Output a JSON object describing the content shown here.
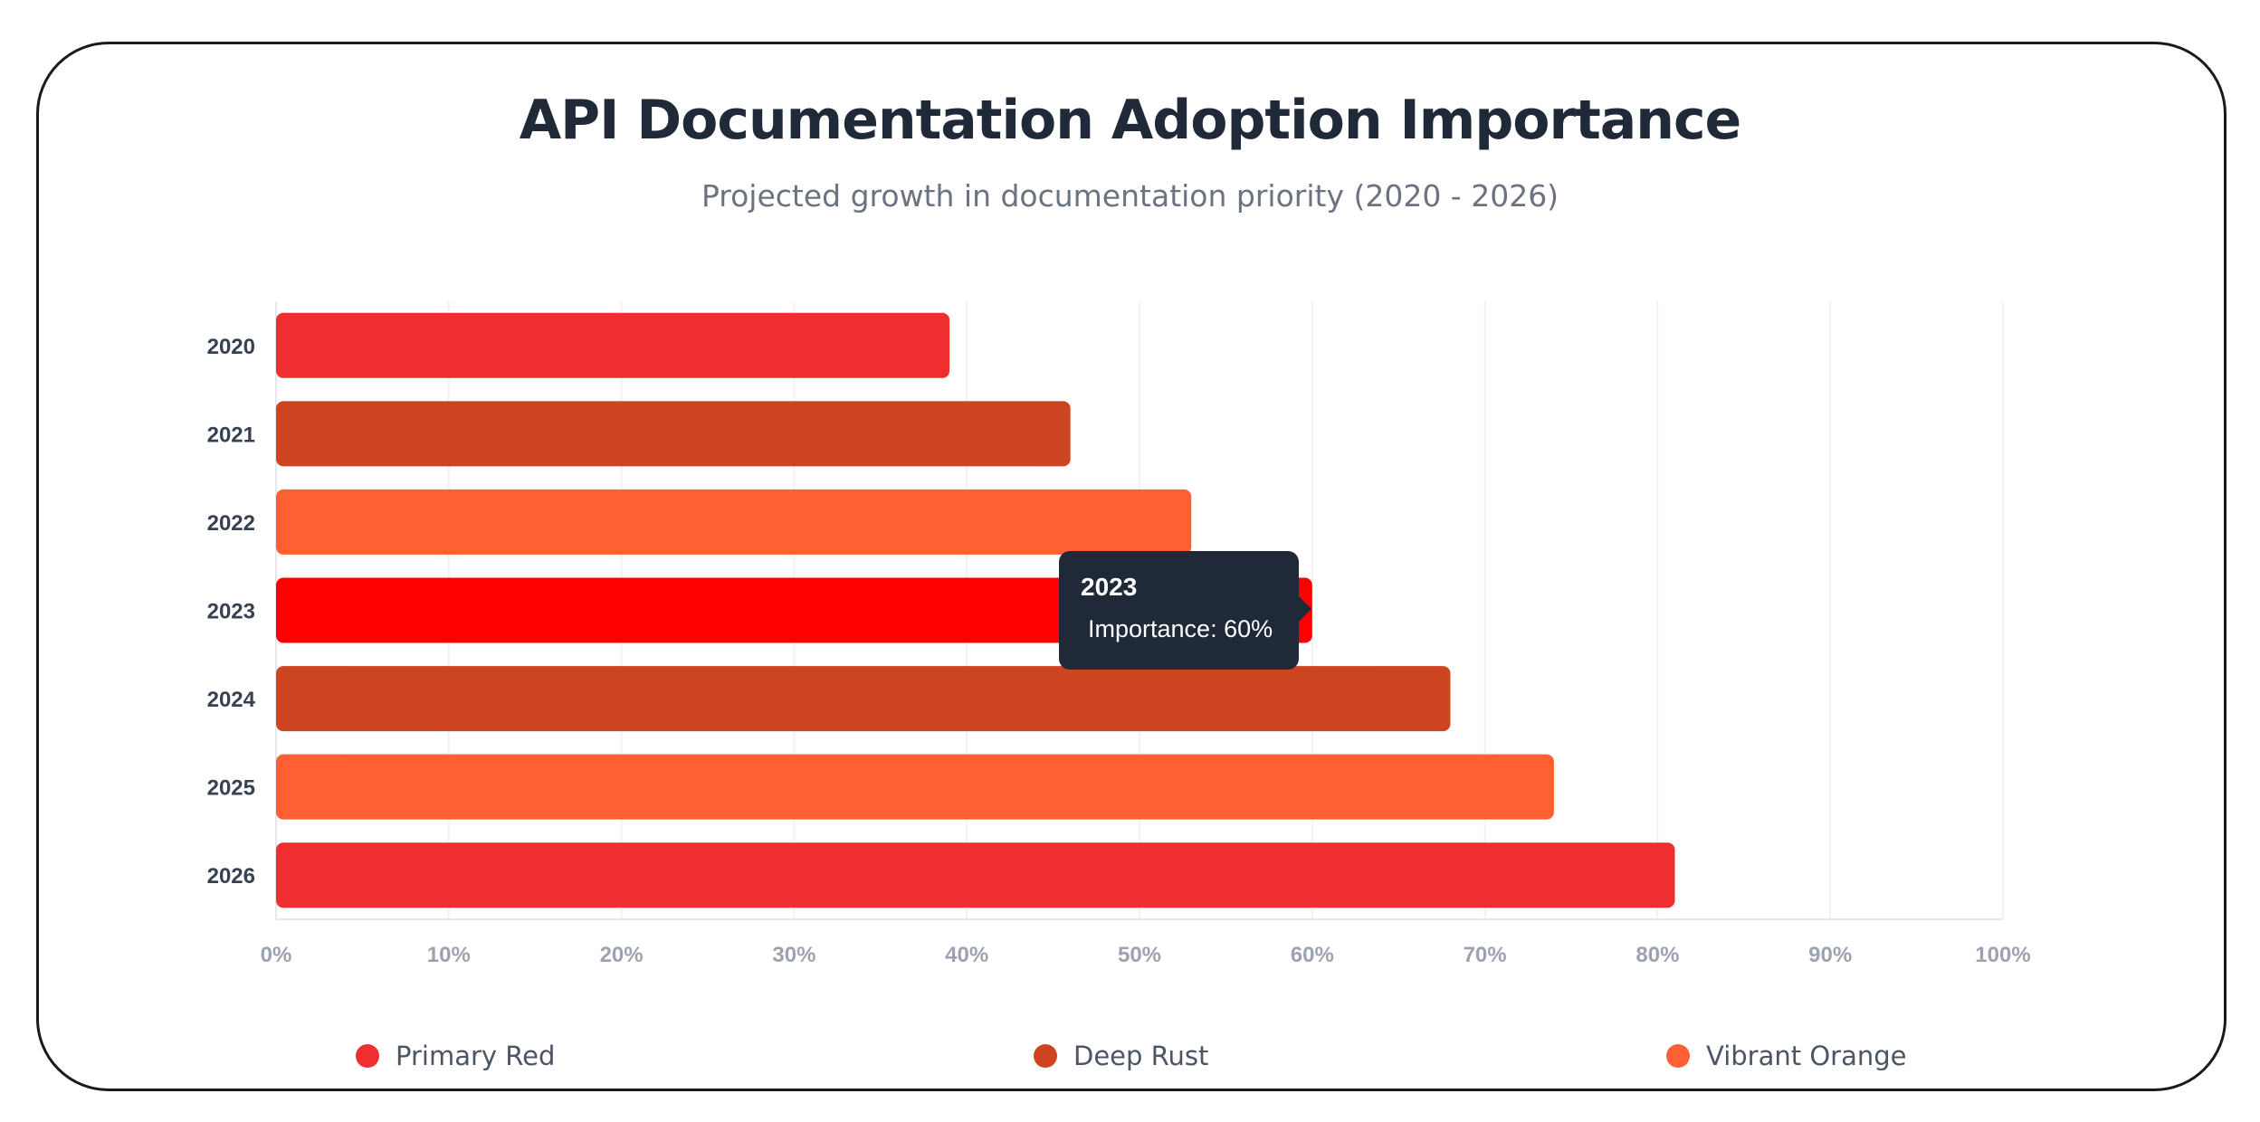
{
  "title": "API Documentation Adoption Importance",
  "subtitle": "Projected growth in documentation priority (2020 - 2026)",
  "colors": {
    "primary_red": "#ef2f2f",
    "deep_rust": "#cc4420",
    "vibrant_orange": "#ff6033",
    "highlight_red": "#ff0000",
    "tooltip_bg": "#1f2937",
    "grid": "#f1f2f4"
  },
  "chart_data": {
    "type": "bar",
    "orientation": "horizontal",
    "categories": [
      "2020",
      "2021",
      "2022",
      "2023",
      "2024",
      "2025",
      "2026"
    ],
    "values": [
      39,
      46,
      53,
      60,
      68,
      74,
      81
    ],
    "bar_colors": [
      "#ef2f2f",
      "#cc4420",
      "#ff6033",
      "#ff0000",
      "#cc4420",
      "#ff6033",
      "#ef2f2f"
    ],
    "xlim": [
      0,
      100
    ],
    "x_ticks": [
      "0%",
      "10%",
      "20%",
      "30%",
      "40%",
      "50%",
      "60%",
      "70%",
      "80%",
      "90%",
      "100%"
    ],
    "grid": true,
    "legend_position": "bottom",
    "legend": [
      {
        "label": "Primary Red",
        "color": "#ef2f2f"
      },
      {
        "label": "Deep Rust",
        "color": "#cc4420"
      },
      {
        "label": "Vibrant Orange",
        "color": "#ff6033"
      }
    ]
  },
  "tooltip": {
    "title": "2023",
    "body": "Importance: 60%"
  }
}
